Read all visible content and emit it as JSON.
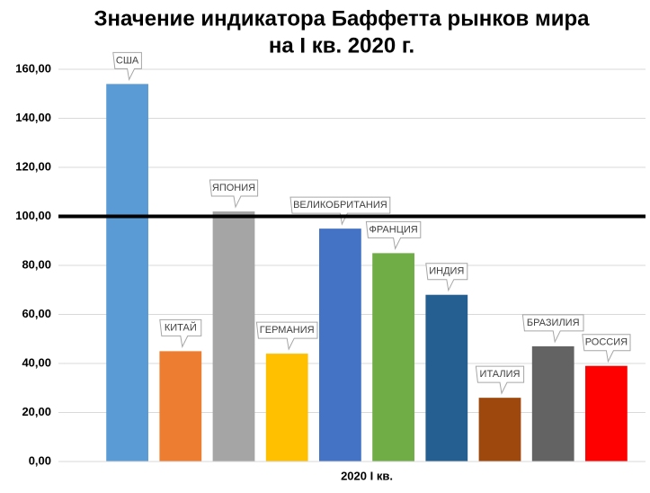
{
  "chart_data": {
    "type": "bar",
    "title": [
      "Значение индикатора  Баффетта рынков мира",
      "на I кв. 2020 г."
    ],
    "categories": [
      "2020 I кв."
    ],
    "series": [
      {
        "name": "США",
        "color": "#5b9bd5",
        "values": [
          154
        ]
      },
      {
        "name": "КИТАЙ",
        "color": "#ed7d31",
        "values": [
          45
        ]
      },
      {
        "name": "ЯПОНИЯ",
        "color": "#a5a5a5",
        "values": [
          102
        ]
      },
      {
        "name": "ГЕРМАНИЯ",
        "color": "#ffc000",
        "values": [
          44
        ]
      },
      {
        "name": "ВЕЛИКОБРИТАНИЯ",
        "color": "#4472c4",
        "values": [
          95
        ]
      },
      {
        "name": "ФРАНЦИЯ",
        "color": "#70ad47",
        "values": [
          85
        ]
      },
      {
        "name": "ИНДИЯ",
        "color": "#255e91",
        "values": [
          68
        ]
      },
      {
        "name": "ИТАЛИЯ",
        "color": "#9e480e",
        "values": [
          26
        ]
      },
      {
        "name": "БРАЗИЛИЯ",
        "color": "#636363",
        "values": [
          47
        ]
      },
      {
        "name": "РОССИЯ",
        "color": "#ff0000",
        "values": [
          39
        ]
      }
    ],
    "reference_line": 100,
    "ylim": [
      0,
      160
    ],
    "yticks": [
      {
        "value": 0,
        "label": "0,00"
      },
      {
        "value": 20,
        "label": "20,00"
      },
      {
        "value": 40,
        "label": "40,00"
      },
      {
        "value": 60,
        "label": "60,00"
      },
      {
        "value": 80,
        "label": "80,00"
      },
      {
        "value": 100,
        "label": "100,00"
      },
      {
        "value": 120,
        "label": "120,00"
      },
      {
        "value": 140,
        "label": "140,00"
      },
      {
        "value": 160,
        "label": "160,00"
      }
    ],
    "grid": true
  }
}
